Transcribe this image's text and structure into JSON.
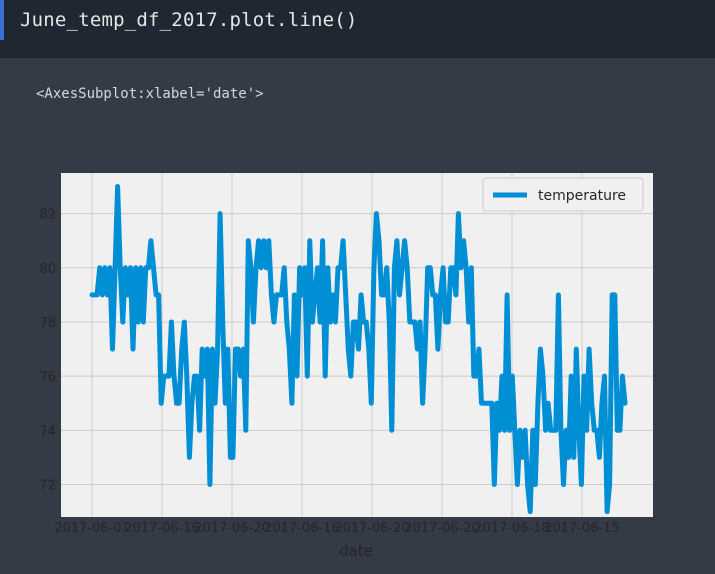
{
  "input": {
    "code": "June_temp_df_2017.plot.line()"
  },
  "output": {
    "text": "<AxesSubplot:xlabel='date'>"
  },
  "chart_data": {
    "type": "line",
    "xlabel": "date",
    "ylabel": "",
    "ylim": [
      70.8,
      83.5
    ],
    "yticks": [
      72,
      74,
      76,
      78,
      80,
      82
    ],
    "xtick_labels": [
      "2017-06-01",
      "2017-06-16",
      "2017-06-20",
      "2017-06-16",
      "2017-06-20",
      "2017-06-20",
      "2017-06-18",
      "2017-06-15"
    ],
    "grid": true,
    "legend": "top-right",
    "colors": {
      "line": "#008fd5",
      "plot_bg": "#f0f0f0",
      "grid": "#cbcbcb"
    },
    "series": [
      {
        "name": "temperature",
        "values": [
          79,
          79,
          79,
          80,
          79,
          80,
          79,
          80,
          77,
          80,
          83,
          80,
          78,
          80,
          79,
          80,
          77,
          80,
          78,
          80,
          78,
          80,
          80,
          81,
          80,
          79,
          79,
          75,
          76,
          76,
          76,
          78,
          76,
          75,
          75,
          77,
          78,
          76,
          73,
          75,
          76,
          76,
          74,
          77,
          76,
          77,
          72,
          77,
          75,
          77,
          82,
          78,
          75,
          77,
          73,
          73,
          77,
          77,
          76,
          77,
          74,
          81,
          80,
          78,
          80,
          81,
          80,
          81,
          80,
          81,
          79,
          78,
          79,
          79,
          79,
          80,
          78,
          77,
          75,
          79,
          76,
          80,
          79,
          80,
          76,
          81,
          78,
          79,
          80,
          78,
          81,
          76,
          80,
          78,
          79,
          78,
          80,
          80,
          81,
          79,
          77,
          76,
          78,
          78,
          77,
          79,
          78,
          78,
          77,
          75,
          80,
          82,
          81,
          79,
          79,
          80,
          78,
          74,
          80,
          81,
          79,
          80,
          81,
          80,
          78,
          78,
          78,
          77,
          78,
          75,
          77,
          80,
          80,
          79,
          79,
          77,
          79,
          80,
          78,
          78,
          80,
          80,
          79,
          82,
          80,
          81,
          80,
          78,
          80,
          76,
          76,
          77,
          75,
          75,
          75,
          75,
          75,
          72,
          75,
          74,
          76,
          74,
          79,
          74,
          76,
          74,
          72,
          74,
          73,
          74,
          72,
          71,
          74,
          72,
          75,
          77,
          76,
          74,
          75,
          74,
          74,
          74,
          79,
          74,
          72,
          74,
          73,
          76,
          73,
          77,
          74,
          72,
          76,
          74,
          77,
          75,
          74,
          74,
          73,
          75,
          76,
          71,
          72,
          79,
          79,
          74,
          74,
          76,
          75
        ]
      }
    ]
  }
}
